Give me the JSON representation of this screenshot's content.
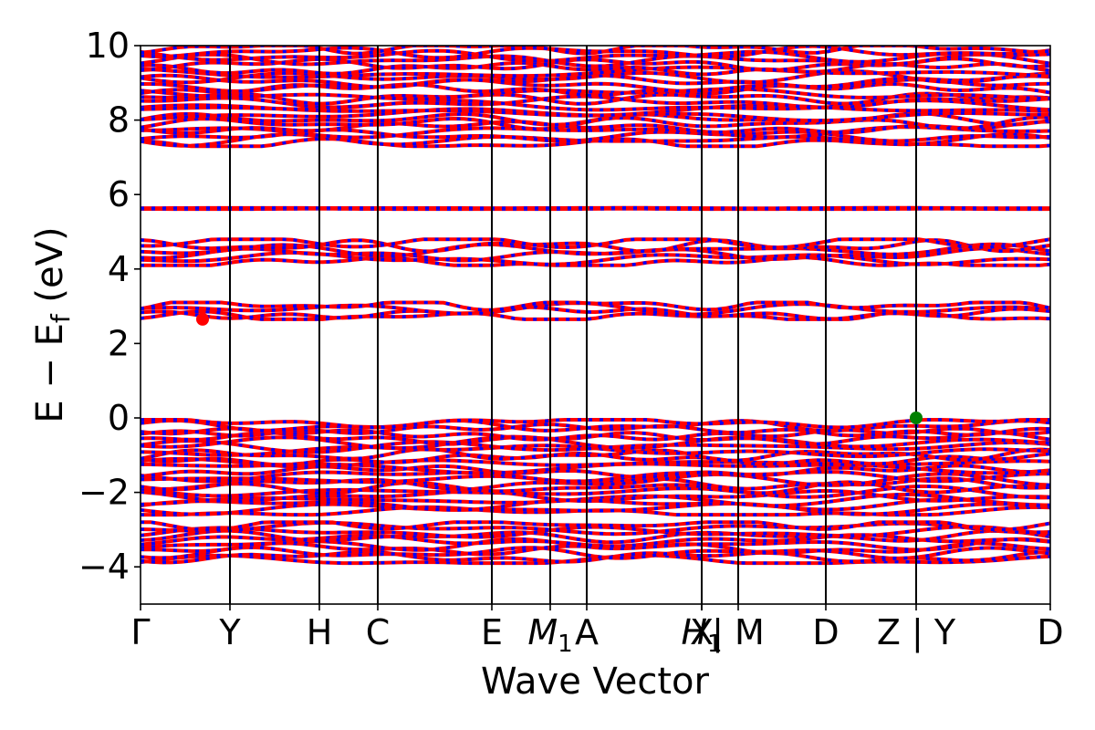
{
  "chart_data": {
    "type": "line",
    "title": "",
    "xlabel": "Wave Vector",
    "ylabel_main": "E − E",
    "ylabel_sub": "f",
    "ylabel_unit": " (eV)",
    "ylim": [
      -5,
      10
    ],
    "yticks": [
      {
        "value": 10,
        "label": "10"
      },
      {
        "value": 8,
        "label": "8"
      },
      {
        "value": 6,
        "label": "6"
      },
      {
        "value": 4,
        "label": "4"
      },
      {
        "value": 2,
        "label": "2"
      },
      {
        "value": 0,
        "label": "0"
      },
      {
        "value": -2,
        "label": "−2"
      },
      {
        "value": -4,
        "label": "−4"
      }
    ],
    "xlim": [
      0,
      9.97
    ],
    "kpoints": [
      {
        "label": "Γ",
        "sub": "",
        "x": 0
      },
      {
        "label": "Y",
        "sub": "",
        "x": 0.98
      },
      {
        "label": "H",
        "sub": "",
        "x": 1.96
      },
      {
        "label": "C",
        "sub": "",
        "x": 2.6
      },
      {
        "label": "E",
        "sub": "",
        "x": 3.85
      },
      {
        "label": "M",
        "sub": "1",
        "x": 4.49
      },
      {
        "label": "A",
        "sub": "",
        "x": 4.89
      },
      {
        "label": "X",
        "sub": "",
        "x": 6.15
      },
      {
        "label": "H",
        "sub": "1",
        "x": 6.15
      },
      {
        "label": "| M",
        "sub": "",
        "x": 6.55
      },
      {
        "label": "D",
        "sub": "",
        "x": 7.51
      },
      {
        "label": "Z | Y",
        "sub": "",
        "x": 8.5
      },
      {
        "label": "D",
        "sub": "",
        "x": 9.97
      }
    ],
    "band_windows": [
      {
        "ymin": -3.9,
        "ymax": -2.8
      },
      {
        "ymin": -2.6,
        "ymax": -0.05
      },
      {
        "ymin": 2.65,
        "ymax": 3.1
      },
      {
        "ymin": 4.1,
        "ymax": 4.8
      },
      {
        "ymin": 5.6,
        "ymax": 5.65
      },
      {
        "ymin": 7.3,
        "ymax": 10
      }
    ],
    "series": [
      {
        "color": "#ff0000"
      },
      {
        "color": "#0000ff"
      }
    ],
    "markers": [
      {
        "name": "CBM",
        "x": 0.68,
        "y": 2.65,
        "color": "#ff0000"
      },
      {
        "name": "VBM",
        "x": 8.5,
        "y": 0.0,
        "color": "#008000"
      }
    ]
  }
}
